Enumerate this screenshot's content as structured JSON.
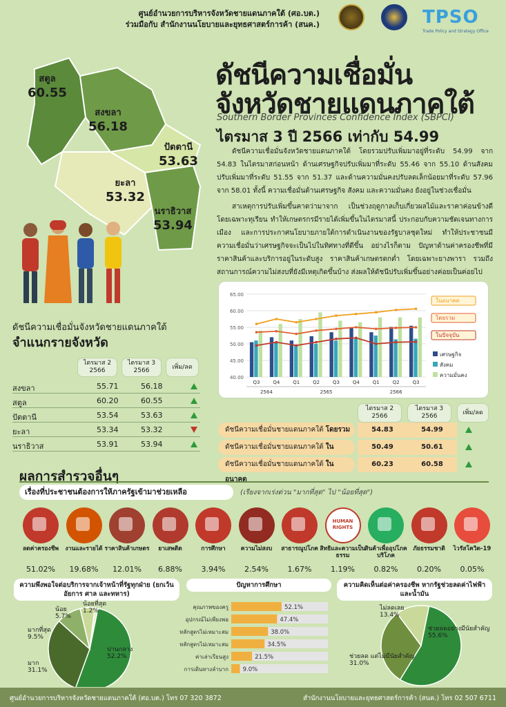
{
  "header": {
    "org_line1": "ศูนย์อำนวยการบริหารจังหวัดชายแดนภาคใต้ (ศอ.บต.)",
    "org_line2": "ร่วมมือกับ สำนักงานนโยบายและยุทธศาสตร์การค้า (สนค.)",
    "logo_text": "TPSO",
    "logo_sub": "Trade Policy and Strategy Office"
  },
  "title": {
    "line1": "ดัชนีความเชื่อมั่น",
    "line2": "จังหวัดชายแดนภาคใต้",
    "english": "Southern Border Provinces Confidence Index (SBPCI)",
    "quarter": "ไตรมาส 3 ปี 2566 เท่ากับ 54.99"
  },
  "paragraphs": {
    "p1": "ดัชนีความเชื่อมั่นจังหวัดชายแดนภาคใต้ โดยรวมปรับเพิ่มมาอยู่ที่ระดับ 54.99 จาก 54.83 ในไตรมาสก่อนหน้า ด้านเศรษฐกิจปรับเพิ่มมาที่ระดับ 55.46 จาก 55.10 ด้านสังคมปรับเพิ่มมาที่ระดับ 51.55 จาก 51.37 และด้านความมั่นคงปรับลดเล็กน้อยมาที่ระดับ 57.96 จาก 58.01 ทั้งนี้ ความเชื่อมั่นด้านเศรษฐกิจ สังคม และความมั่นคง ยังอยู่ในช่วงเชื่อมั่น",
    "p2": "สาเหตุการปรับเพิ่มขึ้นคาดว่ามาจาก เป็นช่วงฤดูกาลเก็บเกี่ยวผลไม้และราคาค่อนข้างดี โดยเฉพาะทุเรียน ทำให้เกษตรกรมีรายได้เพิ่มขึ้นในไตรมาสนี้ ประกอบกับความชัดเจนทางการเมือง และการประกาศนโยบายภายใต้การดำเนินงานของรัฐบาลชุดใหม่ ทำให้ประชาชนมีความเชื่อมั่นว่าเศรษฐกิจจะเป็นไปในทิศทางที่ดีขึ้น อย่างไรก็ตาม ปัญหาด้านค่าครองชีพที่มีราคาสินค้าและบริการอยู่ในระดับสูง ราคาสินค้าเกษตรตกต่ำ โดยเฉพาะยางพารา รวมถึงสถานการณ์ความไม่สงบที่ยังมีเหตุเกิดขึ้นบ้าง ส่งผลให้ดัชนีปรับเพิ่มขึ้นอย่างค่อยเป็นค่อยไป"
  },
  "map": {
    "satun": {
      "name": "สตูล",
      "value": "60.55"
    },
    "songkhla": {
      "name": "สงขลา",
      "value": "56.18"
    },
    "pattani": {
      "name": "ปัตตานี",
      "value": "53.63"
    },
    "yala": {
      "name": "ยะลา",
      "value": "53.32"
    },
    "narathiwat": {
      "name": "นราธิวาส",
      "value": "53.94"
    },
    "colors": {
      "satun": "#5a8a3a",
      "songkhla": "#6f9a48",
      "pattani": "#d6e6a6",
      "yala": "#e6eab8",
      "narathiwat": "#6f9a48"
    }
  },
  "province_table": {
    "title_small": "ดัชนีความเชื่อมั่นจังหวัดชายแดนภาคใต้",
    "title_big": "จำแนกรายจังหวัด",
    "col_q2": "ไตรมาส 2\n2566",
    "col_q3": "ไตรมาส 3\n2566",
    "col_change": "เพิ่ม/ลด",
    "rows": [
      {
        "name": "สงขลา",
        "q2": "55.71",
        "q3": "56.18",
        "dir": "up"
      },
      {
        "name": "สตูล",
        "q2": "60.20",
        "q3": "60.55",
        "dir": "up"
      },
      {
        "name": "ปัตตานี",
        "q2": "53.54",
        "q3": "53.63",
        "dir": "up"
      },
      {
        "name": "ยะลา",
        "q2": "53.34",
        "q3": "53.32",
        "dir": "down"
      },
      {
        "name": "นราธิวาส",
        "q2": "53.91",
        "q3": "53.94",
        "dir": "up"
      }
    ]
  },
  "chart_data": {
    "type": "bar",
    "categories": [
      "Q3",
      "Q4",
      "Q1",
      "Q2",
      "Q3",
      "Q4",
      "Q1",
      "Q2",
      "Q3"
    ],
    "year_labels": [
      {
        "label": "2564",
        "span": [
          0,
          1
        ]
      },
      {
        "label": "2565",
        "span": [
          2,
          5
        ]
      },
      {
        "label": "2566",
        "span": [
          6,
          8
        ]
      }
    ],
    "ylim": [
      40,
      65
    ],
    "yticks": [
      "40.00",
      "45.00",
      "50.00",
      "55.00",
      "60.00",
      "65.00"
    ],
    "series": [
      {
        "name": "เศรษฐกิจ",
        "kind": "bar",
        "color": "#2d4e8a",
        "values": [
          50.5,
          52.0,
          51.0,
          52.3,
          53.5,
          54.8,
          53.5,
          55.1,
          55.46
        ]
      },
      {
        "name": "สังคม",
        "kind": "bar",
        "color": "#3aa7b8",
        "values": [
          51.0,
          50.5,
          49.5,
          50.0,
          51.0,
          51.5,
          52.5,
          51.37,
          51.55
        ]
      },
      {
        "name": "ความมั่นคง",
        "kind": "bar",
        "color": "#bfe0a0",
        "values": [
          54.0,
          56.0,
          57.5,
          59.5,
          57.0,
          56.5,
          58.0,
          58.01,
          57.96
        ]
      },
      {
        "name": "ในอนาคต",
        "kind": "line",
        "color": "#f0a020",
        "values": [
          56.0,
          57.5,
          56.5,
          57.5,
          58.5,
          59.0,
          59.5,
          60.23,
          60.58
        ]
      },
      {
        "name": "โดยรวม",
        "kind": "line",
        "color": "#e06030",
        "values": [
          53.5,
          53.8,
          53.0,
          54.0,
          54.5,
          55.0,
          54.5,
          54.83,
          54.99
        ]
      },
      {
        "name": "ในปัจจุบัน",
        "kind": "line",
        "color": "#c0392b",
        "values": [
          49.5,
          50.5,
          49.5,
          50.5,
          51.5,
          51.8,
          50.0,
          50.49,
          50.61
        ]
      }
    ]
  },
  "index_table": {
    "col_q2": "ไตรมาส 2\n2566",
    "col_q3": "ไตรมาส 3\n2566",
    "col_change": "เพิ่ม/ลด",
    "rows": [
      {
        "label": "ดัชนีความเชื่อมั่นชายแดนภาคใต้",
        "bold": "โดยรวม",
        "q2": "54.83",
        "q3": "54.99",
        "dir": "up"
      },
      {
        "label": "ดัชนีความเชื่อมั่นชายแดนภาคใต้",
        "bold": "ในปัจจุบัน",
        "q2": "50.49",
        "q3": "50.61",
        "dir": "up"
      },
      {
        "label": "ดัชนีความเชื่อมั่นชายแดนภาคใต้",
        "bold": "ในอนาคต",
        "q2": "60.23",
        "q3": "60.58",
        "dir": "up"
      }
    ]
  },
  "survey": {
    "title": "ผลการสำรวจอื่นๆ",
    "help_title": "เรื่องที่ประชาชนต้องการให้ภาครัฐเข้ามาช่วยเหลือ",
    "help_note": "(เรียงจากเร่งด่วน \"มากที่สุด\" ไป \"น้อยที่สุด\")",
    "items": [
      {
        "label": "ลดค่าครองชีพ",
        "pct": "51.02%",
        "icon": "cost-of-living-icon",
        "color": "#c0392b"
      },
      {
        "label": "งานและรายได้",
        "pct": "19.68%",
        "icon": "income-icon",
        "color": "#d35400"
      },
      {
        "label": "ราคาสินค้าเกษตร",
        "pct": "12.01%",
        "icon": "agriculture-icon",
        "color": "#a04030"
      },
      {
        "label": "ยาเสพติด",
        "pct": "6.88%",
        "icon": "drugs-icon",
        "color": "#b03a2e"
      },
      {
        "label": "การศึกษา",
        "pct": "3.94%",
        "icon": "education-icon",
        "color": "#c0392b"
      },
      {
        "label": "ความไม่สงบ",
        "pct": "2.54%",
        "icon": "bomb-icon",
        "color": "#922b21"
      },
      {
        "label": "สาธารณูปโภค",
        "pct": "1.67%",
        "icon": "utilities-icon",
        "color": "#c0392b"
      },
      {
        "label": "สิทธิและความเป็นธรรม",
        "pct": "1.19%",
        "icon": "human-rights-icon",
        "color": "#e0e0e0",
        "badge": "HUMAN RIGHTS"
      },
      {
        "label": "สินค้าเพื่ออุปโภคบริโภค",
        "pct": "0.82%",
        "icon": "groceries-icon",
        "color": "#27ae60"
      },
      {
        "label": "ภัยธรรมชาติ",
        "pct": "0.20%",
        "icon": "disaster-icon",
        "color": "#c0392b"
      },
      {
        "label": "ไวรัสโควิด-19",
        "pct": "0.05%",
        "icon": "virus-icon",
        "color": "#e74c3c"
      }
    ]
  },
  "satisfaction": {
    "title": "ความพึงพอใจต่อบริการจากเจ้าหน้าที่รัฐทุกฝ่าย (ยกเว้น อัยการ ศาล และทหาร)",
    "chart_data": {
      "type": "pie",
      "slices": [
        {
          "label": "ปานกลาง",
          "value": 52.2,
          "color": "#2e8b3a"
        },
        {
          "label": "มาก",
          "value": 31.1,
          "color": "#4a6a2c"
        },
        {
          "label": "มากที่สุด",
          "value": 9.5,
          "color": "#8fb068"
        },
        {
          "label": "น้อย",
          "value": 5.7,
          "color": "#c9d99a"
        },
        {
          "label": "น้อยที่สุด",
          "value": 1.2,
          "color": "#e6edc4"
        }
      ],
      "labels": [
        "ปานกลาง\n52.2%",
        "มาก\n31.1%",
        "มากที่สุด\n9.5%",
        "น้อย\n5.7%",
        "น้อยที่สุด\n1.2%"
      ]
    }
  },
  "education": {
    "title": "ปัญหาการศึกษา",
    "chart_data": {
      "type": "bar",
      "categories": [
        "คุณภาพของครู",
        "อุปกรณ์ไม่เพียงพอ",
        "หลักสูตรไม่เหมาะสม",
        "หลักสูตรไม่เหมาะสม",
        "ค่าเล่าเรียนสูง",
        "การเดินทางลำบาก"
      ],
      "values": [
        52.1,
        47.4,
        38.0,
        34.5,
        21.5,
        9.0
      ],
      "value_labels": [
        "52.1%",
        "47.4%",
        "38.0%",
        "34.5%",
        "21.5%",
        "9.0%"
      ],
      "xlim": [
        0,
        100
      ],
      "bar_color": "#f0b040"
    }
  },
  "cost_opinion": {
    "title": "ความคิดเห็นต่อค่าครองชีพ หากรัฐช่วยลดค่าไฟฟ้าและน้ำมัน",
    "chart_data": {
      "type": "pie",
      "slices": [
        {
          "label": "ช่วยลดอย่างมีนัยสำคัญ",
          "value": 55.6,
          "color": "#2e8b3a"
        },
        {
          "label": "ช่วยลด แต่ไม่มีนัยสำคัญ",
          "value": 31.0,
          "color": "#6f8f3e"
        },
        {
          "label": "ไม่ลดเลย",
          "value": 13.4,
          "color": "#c9d99a"
        }
      ],
      "labels": [
        "ช่วยลดอย่างมีนัยสำคัญ\n55.6%",
        "ช่วยลด แต่ไม่มีนัยสำคัญ\n31.0%",
        "ไม่ลดเลย\n13.4%"
      ]
    }
  },
  "footer": {
    "left": "ศูนย์อำนวยการบริหารจังหวัดชายแดนภาคใต้ (ศอ.บต.) โทร 07 320 3872",
    "right": "สำนักงานนโยบายและยุทธศาสตร์การค้า (สนค.) โทร 02 507 6711"
  }
}
